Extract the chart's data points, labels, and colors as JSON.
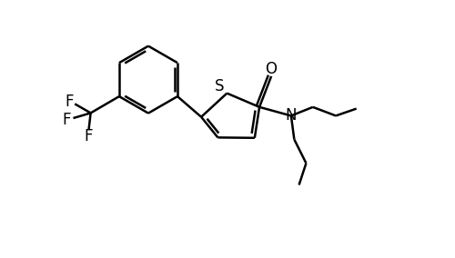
{
  "background_color": "#ffffff",
  "line_color": "#000000",
  "line_width": 1.8,
  "font_size": 12,
  "figsize": [
    5.0,
    2.84
  ],
  "dpi": 100,
  "xlim": [
    -4.5,
    5.5
  ],
  "ylim": [
    -3.2,
    3.2
  ]
}
